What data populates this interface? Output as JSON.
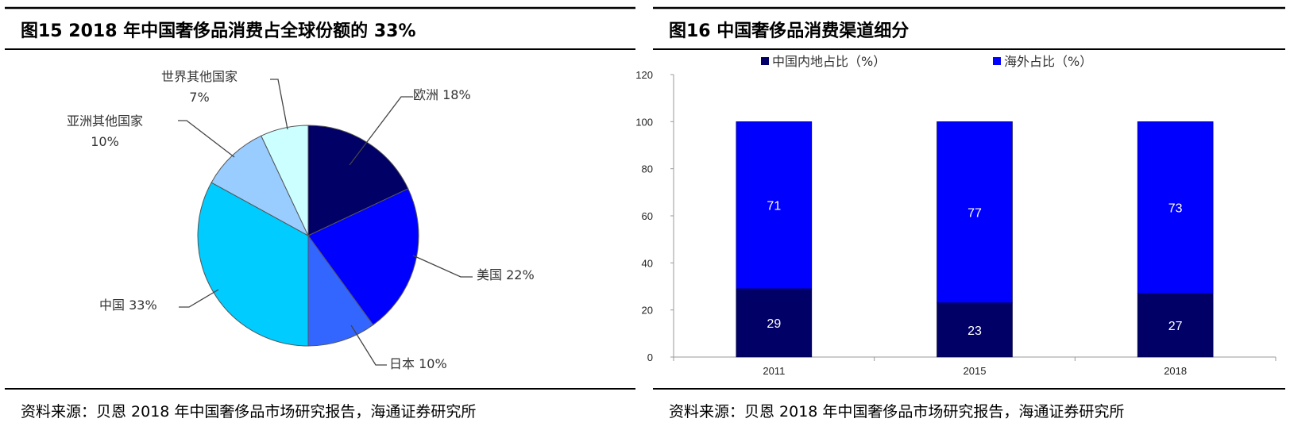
{
  "chart_data": [
    {
      "type": "pie",
      "title": "图15 2018 年中国奢侈品消费占全球份额的 33%",
      "source": "资料来源：贝恩 2018 年中国奢侈品市场研究报告，海通证券研究所",
      "slices": [
        {
          "label": "欧洲",
          "value": 18,
          "display": "欧洲 18%",
          "color": "#000066"
        },
        {
          "label": "美国",
          "value": 22,
          "display": "美国 22%",
          "color": "#0000FF"
        },
        {
          "label": "日本",
          "value": 10,
          "display": "日本 10%",
          "color": "#3366FF"
        },
        {
          "label": "中国",
          "value": 33,
          "display": "中国 33%",
          "color": "#00CCFF"
        },
        {
          "label": "亚洲其他国家",
          "value": 10,
          "display": "10%",
          "color": "#99CCFF"
        },
        {
          "label": "世界其他国家",
          "value": 7,
          "display": "7%",
          "color": "#CCFFFF"
        }
      ]
    },
    {
      "type": "bar",
      "stacked": true,
      "title": "图16 中国奢侈品消费渠道细分",
      "source": "资料来源：贝恩 2018 年中国奢侈品市场研究报告，海通证券研究所",
      "categories": [
        "2011",
        "2015",
        "2018"
      ],
      "series": [
        {
          "name": "中国内地占比（%）",
          "values": [
            29,
            23,
            27
          ],
          "color": "#000066"
        },
        {
          "name": "海外占比（%）",
          "values": [
            71,
            77,
            73
          ],
          "color": "#0000FF"
        }
      ],
      "ylim": [
        0,
        120
      ],
      "yticks": [
        "0",
        "20",
        "40",
        "60",
        "80",
        "100",
        "120"
      ],
      "legend": "top",
      "grid": false
    }
  ]
}
